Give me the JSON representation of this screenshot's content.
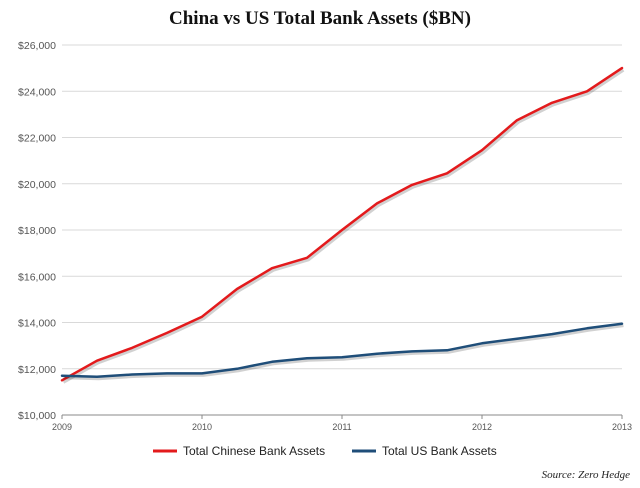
{
  "chart_data": {
    "type": "line",
    "title": "China vs US Total Bank Assets ($BN)",
    "source": "Source: Zero Hedge",
    "xlabel": "",
    "ylabel": "",
    "x": [
      2009.0,
      2009.25,
      2009.5,
      2009.75,
      2010.0,
      2010.25,
      2010.5,
      2010.75,
      2011.0,
      2011.25,
      2011.5,
      2011.75,
      2012.0,
      2012.25,
      2012.5,
      2012.75,
      2013.0
    ],
    "x_ticks": [
      2009,
      2010,
      2011,
      2012,
      2013
    ],
    "x_tick_labels": [
      "2009",
      "2010",
      "2011",
      "2012",
      "2013"
    ],
    "xlim": [
      2009,
      2013
    ],
    "ylim": [
      10000,
      26000
    ],
    "y_ticks": [
      10000,
      12000,
      14000,
      16000,
      18000,
      20000,
      22000,
      24000,
      26000
    ],
    "y_tick_labels": [
      "$10,000",
      "$12,000",
      "$14,000",
      "$16,000",
      "$18,000",
      "$20,000",
      "$22,000",
      "$24,000",
      "$26,000"
    ],
    "grid": "horizontal",
    "legend_position": "bottom",
    "series": [
      {
        "name": "Total Chinese Bank Assets",
        "color": "#e31a1c",
        "values": [
          11500,
          12350,
          12900,
          13550,
          14250,
          15450,
          16350,
          16800,
          18000,
          19150,
          19950,
          20450,
          21450,
          22750,
          23500,
          24000,
          25000
        ]
      },
      {
        "name": "Total US Bank Assets",
        "color": "#1f4e79",
        "values": [
          11700,
          11650,
          11750,
          11800,
          11800,
          12000,
          12300,
          12450,
          12500,
          12650,
          12750,
          12800,
          13100,
          13300,
          13500,
          13750,
          13950
        ]
      }
    ]
  }
}
